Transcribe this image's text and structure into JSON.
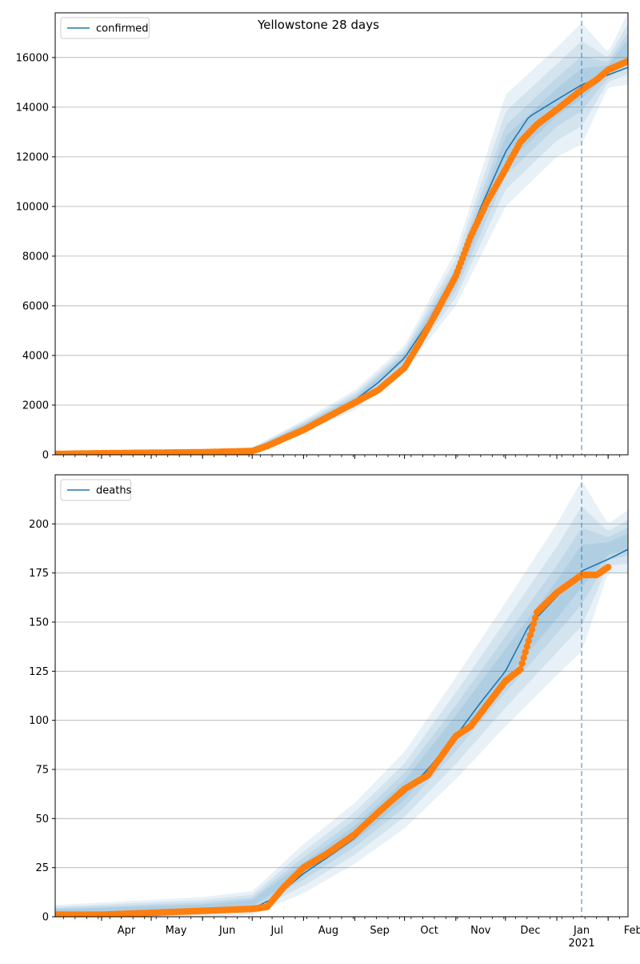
{
  "figure": {
    "suptitle": "Yellowstone 28 days"
  },
  "chart_data": [
    {
      "type": "line",
      "title": "Yellowstone 28 days",
      "legend": [
        "confirmed"
      ],
      "legend_placement": "top-left",
      "grid": "horizontal",
      "ylim": [
        0,
        17800
      ],
      "yticks": [
        0,
        2000,
        4000,
        6000,
        8000,
        10000,
        12000,
        14000,
        16000
      ],
      "x_range": [
        "2020-03-04",
        "2021-02-13"
      ],
      "forecast_start": "2021-01-16",
      "colors": {
        "model": "#1f77b4",
        "observed": "#ff7f0e",
        "band": "#1f77b4",
        "vline": "#1f77b4"
      },
      "series": [
        {
          "name": "confirmed",
          "kind": "model-line",
          "x": [
            "2020-03-04",
            "2020-04-01",
            "2020-05-01",
            "2020-06-01",
            "2020-07-01",
            "2020-07-15",
            "2020-08-01",
            "2020-08-15",
            "2020-09-01",
            "2020-09-15",
            "2020-10-01",
            "2020-10-15",
            "2020-11-01",
            "2020-11-15",
            "2020-12-01",
            "2020-12-15",
            "2021-01-01",
            "2021-01-16",
            "2021-02-01",
            "2021-02-13"
          ],
          "y": [
            30,
            60,
            80,
            100,
            150,
            500,
            1000,
            1500,
            2200,
            2900,
            3900,
            5300,
            7400,
            9800,
            12200,
            13600,
            14300,
            14900,
            15300,
            15600
          ]
        },
        {
          "kind": "observed-points",
          "x": [
            "2020-03-04",
            "2020-04-01",
            "2020-05-01",
            "2020-06-01",
            "2020-07-01",
            "2020-07-10",
            "2020-07-20",
            "2020-08-01",
            "2020-08-15",
            "2020-09-01",
            "2020-09-15",
            "2020-10-01",
            "2020-10-10",
            "2020-10-20",
            "2020-11-01",
            "2020-11-10",
            "2020-11-20",
            "2020-12-01",
            "2020-12-10",
            "2020-12-20",
            "2021-01-01",
            "2021-01-16",
            "2021-01-25",
            "2021-02-01",
            "2021-02-13"
          ],
          "y": [
            30,
            60,
            80,
            100,
            150,
            350,
            650,
            1000,
            1500,
            2100,
            2600,
            3500,
            4500,
            5700,
            7200,
            8800,
            10200,
            11500,
            12600,
            13300,
            13900,
            14700,
            15100,
            15500,
            15850
          ]
        }
      ],
      "band": {
        "x": [
          "2020-03-04",
          "2020-06-01",
          "2020-07-01",
          "2020-08-01",
          "2020-09-01",
          "2020-10-01",
          "2020-11-01",
          "2020-12-01",
          "2021-01-01",
          "2021-01-16",
          "2021-02-01",
          "2021-02-13"
        ],
        "outer_low": [
          0,
          0,
          100,
          900,
          1800,
          3400,
          6000,
          10000,
          12000,
          12500,
          14800,
          14900
        ],
        "outer_high": [
          120,
          200,
          300,
          1400,
          2600,
          4400,
          8200,
          14500,
          16400,
          17400,
          16200,
          17800
        ]
      }
    },
    {
      "type": "line",
      "title": "",
      "legend": [
        "deaths"
      ],
      "legend_placement": "top-left",
      "grid": "horizontal",
      "ylim": [
        0,
        225
      ],
      "yticks": [
        0,
        25,
        50,
        75,
        100,
        125,
        150,
        175,
        200
      ],
      "x_range": [
        "2020-03-04",
        "2021-02-13"
      ],
      "forecast_start": "2021-01-16",
      "xticks": [
        {
          "date": "2020-04-01",
          "label": "Apr"
        },
        {
          "date": "2020-05-01",
          "label": "May"
        },
        {
          "date": "2020-06-01",
          "label": "Jun"
        },
        {
          "date": "2020-07-01",
          "label": "Jul"
        },
        {
          "date": "2020-08-01",
          "label": "Aug"
        },
        {
          "date": "2020-09-01",
          "label": "Sep"
        },
        {
          "date": "2020-10-01",
          "label": "Oct"
        },
        {
          "date": "2020-11-01",
          "label": "Nov"
        },
        {
          "date": "2020-12-01",
          "label": "Dec"
        },
        {
          "date": "2021-01-01",
          "label": "Jan",
          "sublabel": "2021"
        },
        {
          "date": "2021-02-01",
          "label": "Feb"
        }
      ],
      "colors": {
        "model": "#1f77b4",
        "observed": "#ff7f0e",
        "band": "#1f77b4",
        "vline": "#1f77b4"
      },
      "series": [
        {
          "name": "deaths",
          "kind": "model-line",
          "x": [
            "2020-03-04",
            "2020-04-01",
            "2020-05-01",
            "2020-06-01",
            "2020-07-01",
            "2020-07-15",
            "2020-08-01",
            "2020-08-15",
            "2020-09-01",
            "2020-09-15",
            "2020-10-01",
            "2020-10-15",
            "2020-11-01",
            "2020-11-15",
            "2020-12-01",
            "2020-12-15",
            "2021-01-01",
            "2021-01-16",
            "2021-02-01",
            "2021-02-13"
          ],
          "y": [
            1,
            2,
            2,
            3,
            4,
            10,
            22,
            30,
            40,
            52,
            63,
            75,
            92,
            108,
            125,
            148,
            163,
            176,
            182,
            187
          ]
        },
        {
          "kind": "observed-points",
          "x": [
            "2020-03-04",
            "2020-04-01",
            "2020-05-01",
            "2020-06-01",
            "2020-07-01",
            "2020-07-10",
            "2020-07-20",
            "2020-08-01",
            "2020-08-15",
            "2020-09-01",
            "2020-09-15",
            "2020-10-01",
            "2020-10-15",
            "2020-11-01",
            "2020-11-10",
            "2020-11-20",
            "2020-12-01",
            "2020-12-10",
            "2020-12-20",
            "2021-01-01",
            "2021-01-16",
            "2021-01-25",
            "2021-02-01"
          ],
          "y": [
            1,
            1,
            2,
            3,
            4,
            5,
            15,
            25,
            32,
            42,
            53,
            65,
            72,
            92,
            97,
            108,
            120,
            126,
            155,
            165,
            174,
            174,
            178
          ]
        }
      ],
      "band": {
        "x": [
          "2020-03-04",
          "2020-06-01",
          "2020-07-01",
          "2020-08-01",
          "2020-09-01",
          "2020-10-01",
          "2020-11-01",
          "2020-12-01",
          "2021-01-01",
          "2021-01-16",
          "2021-02-01",
          "2021-02-13"
        ],
        "outer_low": [
          0,
          0,
          1,
          12,
          27,
          45,
          70,
          97,
          123,
          135,
          175,
          175
        ],
        "outer_high": [
          6,
          10,
          13,
          37,
          58,
          84,
          122,
          160,
          200,
          222,
          200,
          207
        ]
      }
    }
  ]
}
